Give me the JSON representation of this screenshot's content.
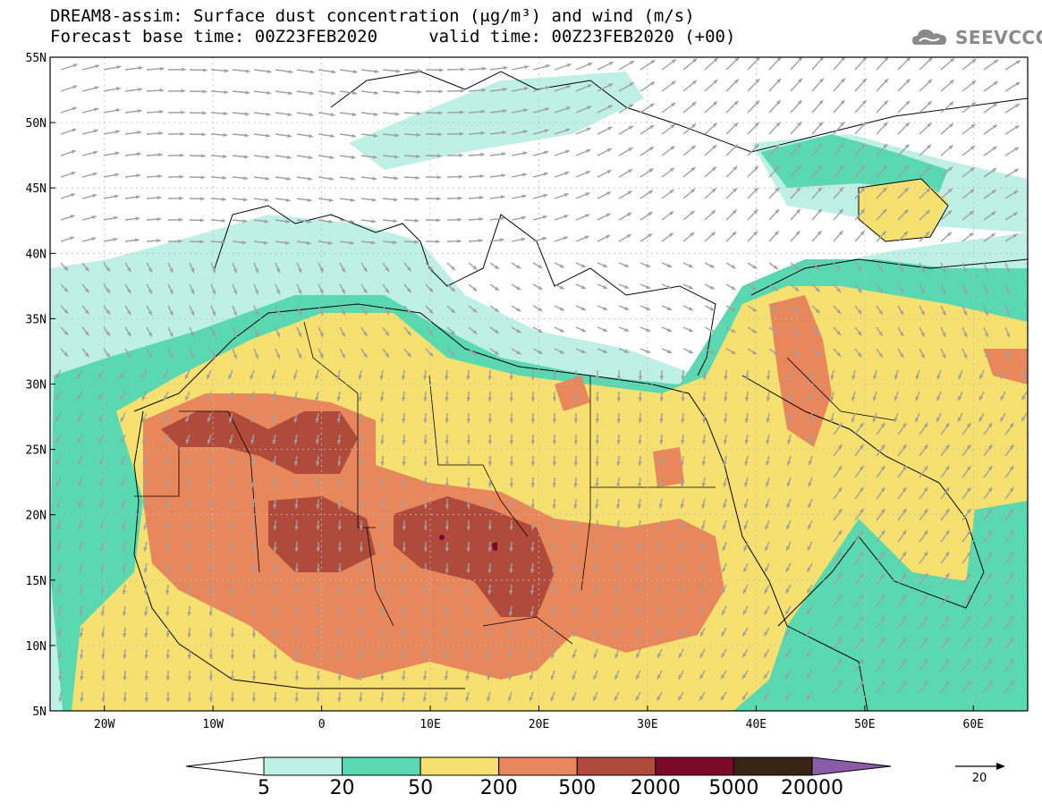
{
  "header": {
    "title_line1": "DREAM8-assim: Surface dust concentration (μg/m³) and wind (m/s)",
    "title_line2": "Forecast base time: 00Z23FEB2020     valid time: 00Z23FEB2020 (+00)"
  },
  "logo": {
    "text": "SEEVCCC",
    "icon": "cloud-logo-icon",
    "color": "#8a8a8a"
  },
  "map": {
    "lon_range": [
      -25,
      65
    ],
    "lat_range": [
      5,
      55
    ],
    "lat_labels": [
      "55N",
      "50N",
      "45N",
      "40N",
      "35N",
      "30N",
      "25N",
      "20N",
      "15N",
      "10N",
      "5N"
    ],
    "lat_values": [
      55,
      50,
      45,
      40,
      35,
      30,
      25,
      20,
      15,
      10,
      5
    ],
    "lon_labels": [
      "20W",
      "10W",
      "0",
      "10E",
      "20E",
      "30E",
      "40E",
      "50E",
      "60E"
    ],
    "lon_values": [
      -20,
      -10,
      0,
      10,
      20,
      30,
      40,
      50,
      60
    ],
    "grid": true,
    "wind_arrow_color": "#a0a0a0",
    "coastline_color": "#000000"
  },
  "colorbar": {
    "levels": [
      "5",
      "20",
      "50",
      "200",
      "500",
      "2000",
      "5000",
      "20000"
    ],
    "colors": [
      "#ffffff",
      "#bff0e6",
      "#5ad9b0",
      "#f5e070",
      "#e8875c",
      "#b04a3a",
      "#7a0a28",
      "#3a2414",
      "#8a5ca8"
    ]
  },
  "reference_vector": {
    "label": "20"
  }
}
